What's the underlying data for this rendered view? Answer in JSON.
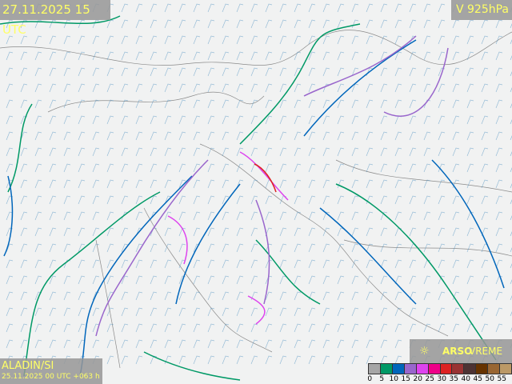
{
  "header": {
    "valid_time": "27.11.2025 15 UTC",
    "level": "V 925hPa"
  },
  "model": {
    "name": "ALADIN/SI",
    "run": "25.11.2025 00 UTC +063 h"
  },
  "brand": {
    "icon": "sun-icon",
    "arso": "ARSO",
    "vreme": "VREME"
  },
  "legend": {
    "ticks": [
      "0",
      "5",
      "10",
      "15",
      "20",
      "25",
      "30",
      "35",
      "40",
      "45",
      "50",
      "55"
    ],
    "colors": [
      "#a6a6a6",
      "#009966",
      "#0066bb",
      "#9966cc",
      "#dd44ee",
      "#ee0088",
      "#dd2222",
      "#993333",
      "#4d3333",
      "#663300",
      "#996633",
      "#bb9966"
    ]
  },
  "contour_colors": {
    "5": "#009966",
    "10": "#0066bb",
    "15": "#9966cc",
    "20": "#dd44ee",
    "30": "#dd2222"
  }
}
